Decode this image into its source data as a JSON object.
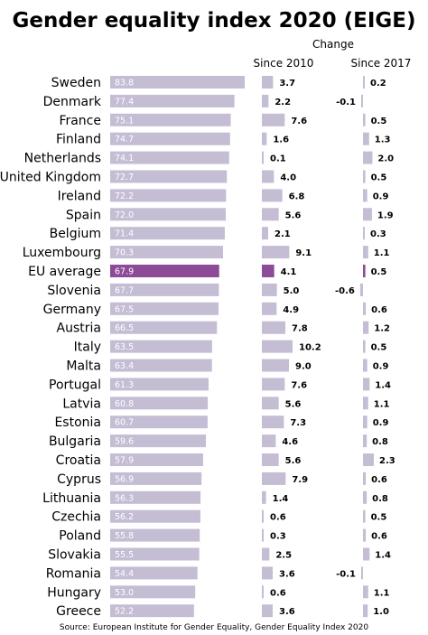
{
  "title": "Gender equality index 2020 (EIGE)",
  "change_header": "Change",
  "source": "Source: European Institute for Gender Equality, Gender Equality Index 2020",
  "colors": {
    "bar": "#c4bdd4",
    "highlight": "#8d4a97",
    "text": "#000000"
  },
  "chart_data": [
    {
      "type": "bar",
      "orientation": "horizontal",
      "title": "Gender equality index 2020 (EIGE)",
      "categories": [
        "Sweden",
        "Denmark",
        "France",
        "Finland",
        "Netherlands",
        "United Kingdom",
        "Ireland",
        "Spain",
        "Belgium",
        "Luxembourg",
        "EU average",
        "Slovenia",
        "Germany",
        "Austria",
        "Italy",
        "Malta",
        "Portugal",
        "Latvia",
        "Estonia",
        "Bulgaria",
        "Croatia",
        "Cyprus",
        "Lithuania",
        "Czechia",
        "Poland",
        "Slovakia",
        "Romania",
        "Hungary",
        "Greece"
      ],
      "values": [
        83.8,
        77.4,
        75.1,
        74.7,
        74.1,
        72.7,
        72.2,
        72.0,
        71.4,
        70.3,
        67.9,
        67.7,
        67.5,
        66.5,
        63.5,
        63.4,
        61.3,
        60.8,
        60.7,
        59.6,
        57.9,
        56.9,
        56.3,
        56.2,
        55.8,
        55.5,
        54.4,
        53.0,
        52.2
      ],
      "labels": [
        "83.8",
        "77.4",
        "75.1",
        "74.7",
        "74.1",
        "72.7",
        "72.2",
        "72.0",
        "71.4",
        "70.3",
        "67.9",
        "67.7",
        "67.5",
        "66.5",
        "63.5",
        "63.4",
        "61.3",
        "60.8",
        "60.7",
        "59.6",
        "57.9",
        "56.9",
        "56.3",
        "56.2",
        "55.8",
        "55.5",
        "54.4",
        "53.0",
        "52.2"
      ],
      "highlight": "EU average"
    },
    {
      "type": "bar",
      "orientation": "horizontal",
      "title": "Since 2010",
      "categories": [
        "Sweden",
        "Denmark",
        "France",
        "Finland",
        "Netherlands",
        "United Kingdom",
        "Ireland",
        "Spain",
        "Belgium",
        "Luxembourg",
        "EU average",
        "Slovenia",
        "Germany",
        "Austria",
        "Italy",
        "Malta",
        "Portugal",
        "Latvia",
        "Estonia",
        "Bulgaria",
        "Croatia",
        "Cyprus",
        "Lithuania",
        "Czechia",
        "Poland",
        "Slovakia",
        "Romania",
        "Hungary",
        "Greece"
      ],
      "values": [
        3.7,
        2.2,
        7.6,
        1.6,
        0.1,
        4.0,
        6.8,
        5.6,
        2.1,
        9.1,
        4.1,
        5.0,
        4.9,
        7.8,
        10.2,
        9.0,
        7.6,
        5.6,
        7.3,
        4.6,
        5.6,
        7.9,
        1.4,
        0.6,
        0.3,
        2.5,
        3.6,
        0.6,
        3.6
      ],
      "labels": [
        "3.7",
        "2.2",
        "7.6",
        "1.6",
        "0.1",
        "4.0",
        "6.8",
        "5.6",
        "2.1",
        "9.1",
        "4.1",
        "5.0",
        "4.9",
        "7.8",
        "10.2",
        "9.0",
        "7.6",
        "5.6",
        "7.3",
        "4.6",
        "5.6",
        "7.9",
        "1.4",
        "0.6",
        "0.3",
        "2.5",
        "3.6",
        "0.6",
        "3.6"
      ],
      "highlight": "EU average"
    },
    {
      "type": "bar",
      "orientation": "horizontal",
      "title": "Since 2017",
      "categories": [
        "Sweden",
        "Denmark",
        "France",
        "Finland",
        "Netherlands",
        "United Kingdom",
        "Ireland",
        "Spain",
        "Belgium",
        "Luxembourg",
        "EU average",
        "Slovenia",
        "Germany",
        "Austria",
        "Italy",
        "Malta",
        "Portugal",
        "Latvia",
        "Estonia",
        "Bulgaria",
        "Croatia",
        "Cyprus",
        "Lithuania",
        "Czechia",
        "Poland",
        "Slovakia",
        "Romania",
        "Hungary",
        "Greece"
      ],
      "values": [
        0.2,
        -0.1,
        0.5,
        1.3,
        2.0,
        0.5,
        0.9,
        1.9,
        0.3,
        1.1,
        0.5,
        -0.6,
        0.6,
        1.2,
        0.5,
        0.9,
        1.4,
        1.1,
        0.9,
        0.8,
        2.3,
        0.6,
        0.8,
        0.5,
        0.6,
        1.4,
        -0.1,
        1.1,
        1.0
      ],
      "labels": [
        "0.2",
        "-0.1",
        "0.5",
        "1.3",
        "2.0",
        "0.5",
        "0.9",
        "1.9",
        "0.3",
        "1.1",
        "0.5",
        "-0.6",
        "0.6",
        "1.2",
        "0.5",
        "0.9",
        "1.4",
        "1.1",
        "0.9",
        "0.8",
        "2.3",
        "0.6",
        "0.8",
        "0.5",
        "0.6",
        "1.4",
        "-0.1",
        "1.1",
        "1.0"
      ],
      "highlight": "EU average"
    }
  ]
}
